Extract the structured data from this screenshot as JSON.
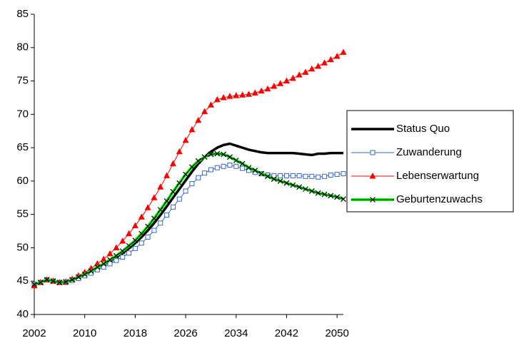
{
  "chart_data": {
    "type": "line",
    "x": [
      2002,
      2003,
      2004,
      2005,
      2006,
      2007,
      2008,
      2009,
      2010,
      2011,
      2012,
      2013,
      2014,
      2015,
      2016,
      2017,
      2018,
      2019,
      2020,
      2021,
      2022,
      2023,
      2024,
      2025,
      2026,
      2027,
      2028,
      2029,
      2030,
      2031,
      2032,
      2033,
      2034,
      2035,
      2036,
      2037,
      2038,
      2039,
      2040,
      2041,
      2042,
      2043,
      2044,
      2045,
      2046,
      2047,
      2048,
      2049,
      2050,
      2051
    ],
    "series": [
      {
        "name": "Status Quo",
        "color": "#000000",
        "marker": "none",
        "values": [
          44.5,
          44.8,
          45.2,
          45.0,
          44.8,
          44.9,
          45.2,
          45.6,
          46.0,
          46.5,
          47.0,
          47.5,
          48.0,
          48.6,
          49.2,
          49.9,
          50.7,
          51.6,
          52.6,
          53.7,
          54.9,
          56.2,
          57.5,
          58.8,
          60.1,
          61.4,
          62.6,
          63.6,
          64.4,
          65.0,
          65.4,
          65.6,
          65.3,
          65.0,
          64.7,
          64.5,
          64.3,
          64.2,
          64.2,
          64.2,
          64.2,
          64.2,
          64.1,
          64.0,
          63.9,
          64.1,
          64.1,
          64.2,
          64.2,
          64.2
        ]
      },
      {
        "name": "Zuwanderung",
        "color": "#3366cc",
        "marker": "square",
        "values": [
          44.5,
          44.8,
          45.2,
          45.0,
          44.8,
          44.8,
          45.1,
          45.4,
          45.8,
          46.2,
          46.7,
          47.1,
          47.6,
          48.1,
          48.6,
          49.2,
          49.9,
          50.7,
          51.6,
          52.6,
          53.7,
          54.9,
          56.1,
          57.3,
          58.5,
          59.6,
          60.5,
          61.2,
          61.7,
          62.0,
          62.2,
          62.4,
          62.2,
          61.9,
          61.6,
          61.3,
          61.1,
          60.9,
          60.8,
          60.8,
          60.8,
          60.8,
          60.8,
          60.7,
          60.7,
          60.6,
          60.7,
          60.9,
          61.0,
          61.1
        ]
      },
      {
        "name": "Lebenserwartung",
        "color": "#ff0000",
        "marker": "triangle",
        "values": [
          44.3,
          44.8,
          45.2,
          45.0,
          44.8,
          44.9,
          45.3,
          45.8,
          46.3,
          46.9,
          47.6,
          48.3,
          49.1,
          50.0,
          51.0,
          52.1,
          53.3,
          54.6,
          56.0,
          57.5,
          59.1,
          60.8,
          62.6,
          64.4,
          66.1,
          67.7,
          69.1,
          70.4,
          71.4,
          72.2,
          72.5,
          72.7,
          72.8,
          72.9,
          73.0,
          73.2,
          73.5,
          73.8,
          74.2,
          74.6,
          75.0,
          75.4,
          75.9,
          76.3,
          76.8,
          77.2,
          77.7,
          78.2,
          78.7,
          79.3
        ]
      },
      {
        "name": "Geburtenzuwachs",
        "color": "#00ff00",
        "marker": "cross",
        "values": [
          44.5,
          44.8,
          45.2,
          45.0,
          44.8,
          44.9,
          45.2,
          45.6,
          46.0,
          46.5,
          47.1,
          47.6,
          48.2,
          48.8,
          49.5,
          50.3,
          51.1,
          52.1,
          53.2,
          54.4,
          55.7,
          57.0,
          58.4,
          59.7,
          61.0,
          62.1,
          63.0,
          63.6,
          64.0,
          64.1,
          64.0,
          63.6,
          63.1,
          62.6,
          62.0,
          61.6,
          61.1,
          60.7,
          60.3,
          60.0,
          59.7,
          59.4,
          59.1,
          58.8,
          58.5,
          58.2,
          58.0,
          57.8,
          57.6,
          57.3
        ]
      }
    ],
    "xlim": [
      2002,
      2051
    ],
    "xticks": [
      2002,
      2010,
      2018,
      2026,
      2034,
      2042,
      2050
    ],
    "ylim": [
      40,
      85
    ],
    "yticks": [
      40,
      45,
      50,
      55,
      60,
      65,
      70,
      75,
      80,
      85
    ],
    "grid": false,
    "legend": "right"
  }
}
